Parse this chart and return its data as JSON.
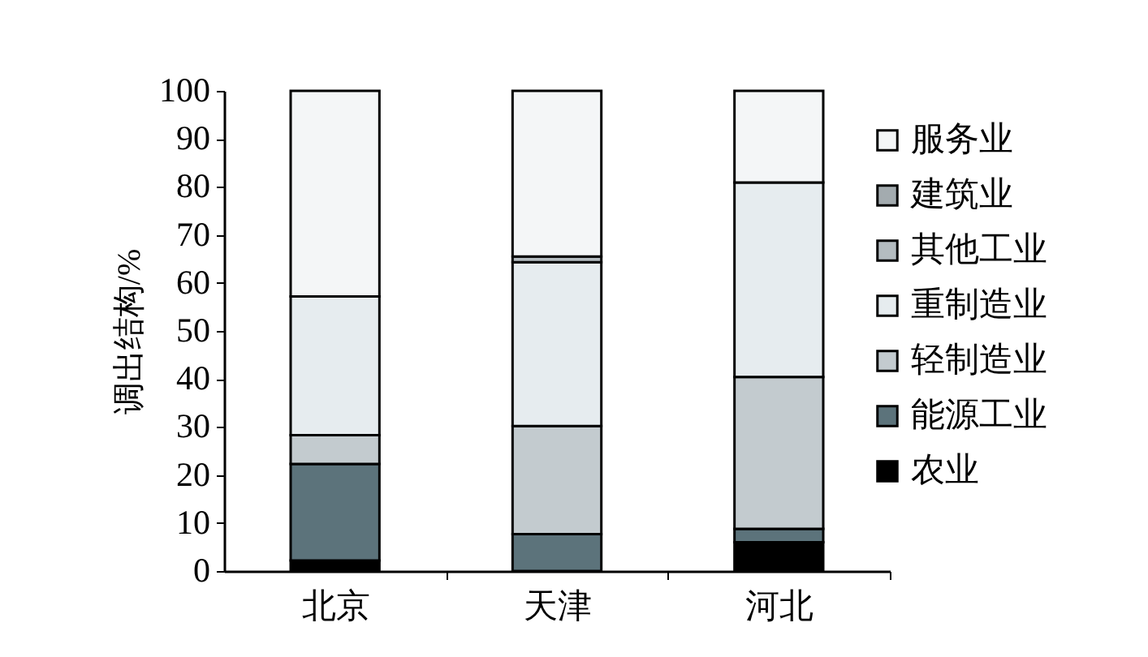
{
  "chart_data": {
    "type": "bar",
    "stacked": true,
    "ylabel": "调出结构/%",
    "categories": [
      "北京",
      "天津",
      "河北"
    ],
    "ylim": [
      0,
      100
    ],
    "yticks": [
      0,
      10,
      20,
      30,
      40,
      50,
      60,
      70,
      80,
      90,
      100
    ],
    "grid": false,
    "legend": "right",
    "series": [
      {
        "name": "农业",
        "color": "#000000",
        "values": [
          2.2,
          null,
          6.0
        ]
      },
      {
        "name": "能源工业",
        "color": "#5c737b",
        "values": [
          20.1,
          7.7,
          2.8
        ]
      },
      {
        "name": "轻制造业",
        "color": "#c3cbcf",
        "values": [
          6.0,
          22.5,
          31.6
        ]
      },
      {
        "name": "重制造业",
        "color": "#e6ecef",
        "values": [
          28.9,
          34.1,
          40.5
        ]
      },
      {
        "name": "其他工业",
        "color": "#b4bcc0",
        "values": [
          null,
          1.2,
          null
        ]
      },
      {
        "name": "建筑业",
        "color": "#a3abaf",
        "values": [
          null,
          null,
          null
        ]
      },
      {
        "name": "服务业",
        "color": "#f4f6f7",
        "values": [
          42.8,
          34.5,
          19.1
        ]
      }
    ]
  }
}
